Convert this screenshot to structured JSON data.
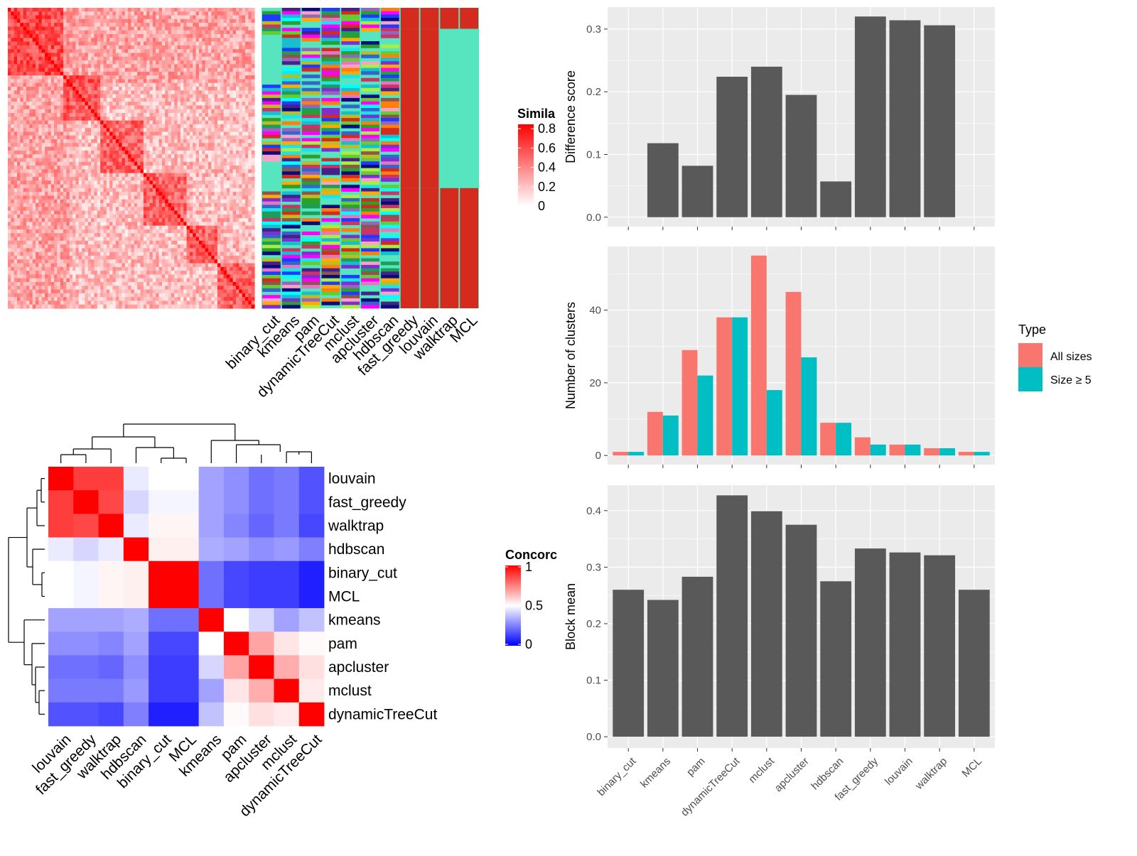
{
  "colors": {
    "panel_bg": "#ebebeb",
    "grid": "#ffffff",
    "bar": "#595959",
    "all_sizes": "#f8766d",
    "size5": "#00bfc4",
    "sim_high": "#ff0000",
    "sim_low": "#ffffff",
    "conc_low": "#0000ff",
    "conc_mid": "#ffffff",
    "conc_high": "#ff0000",
    "class_bg": "#56e5bf"
  },
  "similarity_legend": {
    "title": "Simila",
    "ticks": [
      "0",
      "0.2",
      "0.4",
      "0.6",
      "0.8"
    ]
  },
  "concordance_legend": {
    "title": "Concorc",
    "ticks": [
      "0",
      "0.5",
      "1"
    ]
  },
  "class_columns": [
    "binary_cut",
    "kmeans",
    "pam",
    "dynamicTreeCut",
    "mclust",
    "apcluster",
    "hdbscan",
    "fast_greedy",
    "louvain",
    "walktrap",
    "MCL"
  ],
  "chart_data": [
    {
      "type": "heatmap",
      "name": "concordance",
      "row_labels": [
        "louvain",
        "fast_greedy",
        "walktrap",
        "hdbscan",
        "binary_cut",
        "MCL",
        "kmeans",
        "pam",
        "apcluster",
        "mclust",
        "dynamicTreeCut"
      ],
      "col_labels": [
        "louvain",
        "fast_greedy",
        "walktrap",
        "hdbscan",
        "binary_cut",
        "MCL",
        "kmeans",
        "pam",
        "apcluster",
        "mclust",
        "dynamicTreeCut"
      ],
      "values": [
        [
          1.0,
          0.88,
          0.88,
          0.46,
          0.5,
          0.5,
          0.32,
          0.28,
          0.22,
          0.24,
          0.16
        ],
        [
          0.88,
          1.0,
          0.86,
          0.42,
          0.48,
          0.48,
          0.32,
          0.28,
          0.22,
          0.24,
          0.16
        ],
        [
          0.88,
          0.86,
          1.0,
          0.46,
          0.52,
          0.52,
          0.32,
          0.26,
          0.2,
          0.24,
          0.14
        ],
        [
          0.46,
          0.42,
          0.46,
          1.0,
          0.53,
          0.53,
          0.34,
          0.32,
          0.28,
          0.3,
          0.25
        ],
        [
          0.5,
          0.48,
          0.52,
          0.53,
          1.0,
          1.0,
          0.22,
          0.14,
          0.12,
          0.12,
          0.06
        ],
        [
          0.5,
          0.48,
          0.52,
          0.53,
          1.0,
          1.0,
          0.22,
          0.14,
          0.12,
          0.12,
          0.06
        ],
        [
          0.32,
          0.32,
          0.32,
          0.34,
          0.22,
          0.22,
          1.0,
          0.5,
          0.42,
          0.32,
          0.38
        ],
        [
          0.28,
          0.28,
          0.26,
          0.32,
          0.14,
          0.14,
          0.5,
          1.0,
          0.68,
          0.55,
          0.51
        ],
        [
          0.22,
          0.22,
          0.2,
          0.28,
          0.12,
          0.12,
          0.42,
          0.68,
          1.0,
          0.66,
          0.56
        ],
        [
          0.24,
          0.24,
          0.24,
          0.3,
          0.12,
          0.12,
          0.32,
          0.55,
          0.66,
          1.0,
          0.54
        ],
        [
          0.16,
          0.16,
          0.14,
          0.25,
          0.06,
          0.06,
          0.38,
          0.51,
          0.56,
          0.54,
          1.0
        ]
      ],
      "legend_title": "Concorc",
      "ylim": [
        0,
        1
      ]
    },
    {
      "type": "bar",
      "name": "difference_score",
      "categories": [
        "binary_cut",
        "kmeans",
        "pam",
        "dynamicTreeCut",
        "mclust",
        "apcluster",
        "hdbscan",
        "fast_greedy",
        "louvain",
        "walktrap",
        "MCL"
      ],
      "values": [
        0.0,
        0.118,
        0.082,
        0.224,
        0.24,
        0.195,
        0.057,
        0.32,
        0.314,
        0.306,
        0.0
      ],
      "ylabel": "Difference score",
      "ylim": [
        -0.015,
        0.335
      ],
      "yticks": [
        "0.0",
        "0.1",
        "0.2",
        "0.3"
      ]
    },
    {
      "type": "bar",
      "name": "number_of_clusters",
      "categories": [
        "binary_cut",
        "kmeans",
        "pam",
        "dynamicTreeCut",
        "mclust",
        "apcluster",
        "hdbscan",
        "fast_greedy",
        "louvain",
        "walktrap",
        "MCL"
      ],
      "series": [
        {
          "name": "All sizes",
          "values": [
            1,
            12,
            29,
            38,
            55,
            45,
            9,
            5,
            3,
            2,
            1
          ]
        },
        {
          "name": "Size ≥ 5",
          "values": [
            1,
            11,
            22,
            38,
            18,
            27,
            9,
            3,
            3,
            2,
            1
          ]
        }
      ],
      "ylabel": "Number of clusters",
      "ylim": [
        -2.5,
        57.5
      ],
      "yticks": [
        "0",
        "20",
        "40"
      ],
      "legend_title": "Type",
      "legend_position": "right"
    },
    {
      "type": "bar",
      "name": "block_mean",
      "categories": [
        "binary_cut",
        "kmeans",
        "pam",
        "dynamicTreeCut",
        "mclust",
        "apcluster",
        "hdbscan",
        "fast_greedy",
        "louvain",
        "walktrap",
        "MCL"
      ],
      "values": [
        0.26,
        0.242,
        0.283,
        0.427,
        0.399,
        0.375,
        0.275,
        0.333,
        0.326,
        0.321,
        0.26
      ],
      "ylabel": "Block mean",
      "ylim": [
        -0.02,
        0.445
      ],
      "yticks": [
        "0.0",
        "0.1",
        "0.2",
        "0.3",
        "0.4"
      ]
    }
  ]
}
